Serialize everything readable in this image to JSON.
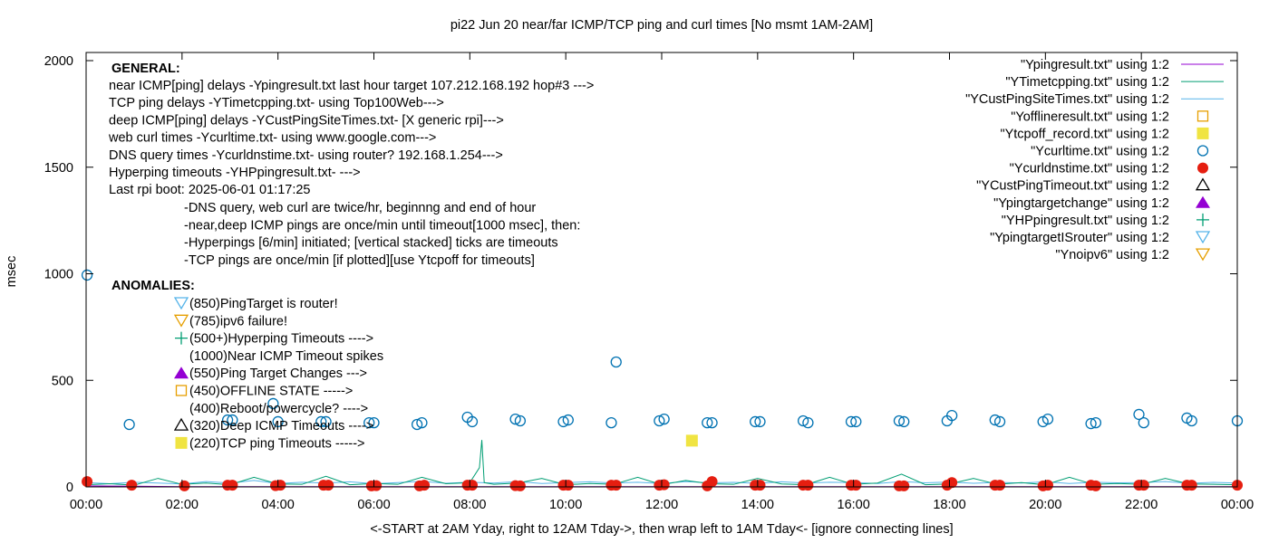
{
  "chart_data": {
    "type": "line",
    "title": "pi22 Jun 20  near/far ICMP/TCP ping and curl times [No msmt 1AM-2AM]",
    "xlabel": "<-START at 2AM Yday, right to 12AM Tday->, then wrap left to 1AM Tday<- [ignore connecting lines]",
    "ylabel": "msec",
    "xlim_hours": [
      0,
      24
    ],
    "ylim": [
      0,
      2000
    ],
    "x_ticks": [
      "00:00",
      "02:00",
      "04:00",
      "06:00",
      "08:00",
      "10:00",
      "12:00",
      "14:00",
      "16:00",
      "18:00",
      "20:00",
      "22:00",
      "00:00"
    ],
    "y_ticks": [
      0,
      500,
      1000,
      1500,
      2000
    ],
    "grid": false,
    "legend_placement": "top-right",
    "colors": {
      "Ypingresult": "#9400d3",
      "YTimetcpping": "#009e73",
      "YCustPingSiteTimes": "#56b4e9",
      "Yofflineresult": "#e69f00",
      "Ytcpoff_record": "#f0e442",
      "Ycurltime": "#0072b2",
      "Ycurldnstime": "#e51e10",
      "YCustPingTimeout": "#000000",
      "Ypingtargetchange": "#9400d3",
      "YHPpingresult": "#009e73",
      "YpingtargetISrouter": "#56b4e9",
      "Ynoipv6": "#e69f00"
    },
    "legend": [
      {
        "label": "\"Ypingresult.txt\" using 1:2",
        "style": "line",
        "color": "#9400d3"
      },
      {
        "label": "\"YTimetcpping.txt\" using 1:2",
        "style": "line",
        "color": "#009e73"
      },
      {
        "label": "\"YCustPingSiteTimes.txt\" using 1:2",
        "style": "line",
        "color": "#56b4e9"
      },
      {
        "label": "\"Yofflineresult.txt\" using 1:2",
        "style": "square-open",
        "color": "#e69f00"
      },
      {
        "label": "\"Ytcpoff_record.txt\" using 1:2",
        "style": "square-filled",
        "color": "#f0e442"
      },
      {
        "label": "\"Ycurltime.txt\" using 1:2",
        "style": "circle-open",
        "color": "#0072b2"
      },
      {
        "label": "\"Ycurldnstime.txt\" using 1:2",
        "style": "circle-filled",
        "color": "#e51e10"
      },
      {
        "label": "\"YCustPingTimeout.txt\" using 1:2",
        "style": "triangle-open",
        "color": "#000000"
      },
      {
        "label": "\"Ypingtargetchange\" using 1:2",
        "style": "triangle-filled",
        "color": "#9400d3"
      },
      {
        "label": "\"YHPpingresult.txt\" using 1:2",
        "style": "plus",
        "color": "#009e73"
      },
      {
        "label": "\"YpingtargetISrouter\" using 1:2",
        "style": "triangle-down-open",
        "color": "#56b4e9"
      },
      {
        "label": "\"Ynoipv6\" using 1:2",
        "style": "triangle-down-open",
        "color": "#e69f00"
      }
    ],
    "series": {
      "Ypingresult": {
        "x": [
          0,
          1,
          2,
          24
        ],
        "y": [
          5,
          3,
          1,
          1
        ]
      },
      "YTimetcpping": {
        "x": [
          0,
          0.5,
          1,
          1.5,
          2,
          2.5,
          3,
          3.5,
          4,
          4.5,
          5,
          5.5,
          6,
          6.5,
          7,
          7.5,
          8,
          8.2,
          8.25,
          8.3,
          8.5,
          9,
          9.5,
          10,
          10.5,
          11,
          11.5,
          12,
          12.5,
          13,
          13.5,
          14,
          14.5,
          15,
          15.5,
          16,
          16.5,
          17,
          17.5,
          18,
          18.5,
          19,
          19.5,
          20,
          20.5,
          21,
          21.5,
          22,
          22.5,
          23,
          23.5,
          24
        ],
        "y": [
          10,
          15,
          8,
          40,
          12,
          18,
          10,
          45,
          14,
          12,
          50,
          10,
          16,
          12,
          45,
          15,
          20,
          90,
          220,
          20,
          12,
          18,
          40,
          10,
          16,
          12,
          45,
          10,
          30,
          15,
          12,
          40,
          14,
          10,
          45,
          12,
          18,
          60,
          10,
          14,
          40,
          12,
          20,
          10,
          45,
          12,
          16,
          12,
          40,
          14,
          12,
          10
        ]
      },
      "YCustPingSiteTimes": {
        "x": [
          0,
          0.5,
          1,
          1.5,
          2,
          2.5,
          3,
          3.5,
          4,
          4.5,
          5,
          5.5,
          6,
          6.5,
          7,
          7.5,
          8,
          8.5,
          9,
          9.5,
          10,
          10.5,
          11,
          11.5,
          12,
          12.5,
          13,
          13.5,
          14,
          14.5,
          15,
          15.5,
          16,
          16.5,
          17,
          17.5,
          18,
          18.5,
          19,
          19.5,
          20,
          20.5,
          21,
          21.5,
          22,
          22.5,
          23,
          23.5,
          24
        ],
        "y": [
          20,
          15,
          22,
          18,
          14,
          25,
          18,
          30,
          16,
          22,
          18,
          24,
          15,
          20,
          26,
          17,
          22,
          18,
          25,
          16,
          20,
          24,
          18,
          22,
          16,
          25,
          19,
          21,
          17,
          24,
          18,
          22,
          20,
          16,
          25,
          19,
          23,
          17,
          21,
          18,
          24,
          16,
          22,
          19,
          20,
          25,
          17,
          21,
          18
        ]
      },
      "Ytcpoff_record": {
        "x": [
          12.63
        ],
        "y": [
          217
        ]
      },
      "Ycurltime": {
        "x": [
          0.02,
          0.9,
          2.95,
          3.05,
          3.9,
          4.0,
          4.9,
          5.0,
          5.9,
          6.0,
          6.9,
          7.0,
          7.95,
          8.05,
          8.95,
          9.05,
          9.95,
          10.05,
          10.95,
          11.05,
          11.95,
          12.05,
          12.95,
          13.05,
          13.95,
          14.05,
          14.95,
          15.05,
          15.95,
          16.05,
          16.95,
          17.05,
          17.95,
          18.05,
          18.95,
          19.05,
          19.95,
          20.05,
          20.95,
          21.05,
          21.95,
          22.05,
          22.95,
          23.05,
          24.0
        ],
        "y": [
          994,
          293,
          314,
          314,
          391,
          306,
          306,
          306,
          301,
          301,
          293,
          301,
          327,
          306,
          318,
          310,
          306,
          314,
          301,
          586,
          310,
          318,
          301,
          301,
          306,
          306,
          310,
          301,
          306,
          306,
          310,
          306,
          310,
          335,
          314,
          306,
          306,
          318,
          297,
          301,
          340,
          301,
          323,
          310,
          310
        ]
      },
      "Ycurldnstime": {
        "x": [
          0.02,
          0.95,
          2.05,
          2.95,
          3.05,
          3.95,
          4.05,
          4.95,
          5.05,
          5.95,
          6.05,
          6.95,
          7.05,
          7.95,
          8.05,
          8.95,
          9.05,
          9.95,
          10.05,
          10.95,
          11.05,
          11.95,
          12.05,
          12.95,
          13.05,
          13.95,
          14.05,
          14.95,
          15.05,
          15.95,
          16.05,
          16.95,
          17.05,
          17.95,
          18.05,
          18.95,
          19.05,
          19.95,
          20.05,
          20.95,
          21.05,
          21.95,
          22.05,
          22.95,
          23.05,
          24.0
        ],
        "y": [
          25,
          8,
          5,
          8,
          8,
          6,
          8,
          8,
          8,
          5,
          6,
          5,
          8,
          8,
          8,
          6,
          5,
          8,
          8,
          8,
          8,
          8,
          10,
          5,
          25,
          8,
          8,
          8,
          8,
          8,
          8,
          5,
          5,
          8,
          20,
          8,
          8,
          5,
          8,
          8,
          5,
          8,
          8,
          8,
          8,
          8
        ]
      }
    }
  },
  "annotations": {
    "general_heading": "GENERAL:",
    "general_lines": [
      "near ICMP[ping] delays -Ypingresult.txt last hour target 107.212.168.192 hop#3 --->",
      "TCP ping delays -YTimetcpping.txt- using Top100Web--->",
      "deep ICMP[ping] delays -YCustPingSiteTimes.txt- [X generic rpi]--->",
      "web curl times -Ycurltime.txt- using www.google.com--->",
      "DNS query times -Ycurldnstime.txt- using router? 192.168.1.254--->",
      "Hyperping timeouts -YHPpingresult.txt- --->",
      "Last rpi boot: 2025-06-01 01:17:25"
    ],
    "notes": [
      "-DNS query, web curl are twice/hr, beginnng and end of hour",
      "-near,deep ICMP pings are once/min until timeout[1000 msec], then:",
      "  -Hyperpings [6/min] initiated; [vertical stacked] ticks are timeouts",
      "-TCP pings are once/min [if plotted][use Ytcpoff for timeouts]"
    ],
    "anomalies_heading": "ANOMALIES:",
    "anomalies": [
      {
        "text": "(850)PingTarget is router!",
        "symbol": "triangle-down-open",
        "color": "#56b4e9"
      },
      {
        "text": "(785)ipv6 failure!",
        "symbol": "triangle-down-open",
        "color": "#e69f00"
      },
      {
        "text": "(500+)Hyperping Timeouts ---->",
        "symbol": "plus",
        "color": "#009e73"
      },
      {
        "text": "(1000)Near ICMP Timeout spikes",
        "symbol": "none",
        "color": ""
      },
      {
        "text": "(550)Ping Target Changes --->",
        "symbol": "triangle-filled",
        "color": "#9400d3"
      },
      {
        "text": "(450)OFFLINE STATE ----->",
        "symbol": "square-open",
        "color": "#e69f00"
      },
      {
        "text": "(400)Reboot/powercycle? ---->",
        "symbol": "none",
        "color": ""
      },
      {
        "text": "(320)Deep ICMP Timeouts ---->",
        "symbol": "triangle-open",
        "color": "#000000"
      },
      {
        "text": "(220)TCP ping Timeouts ----->",
        "symbol": "square-filled",
        "color": "#f0e442"
      }
    ]
  }
}
